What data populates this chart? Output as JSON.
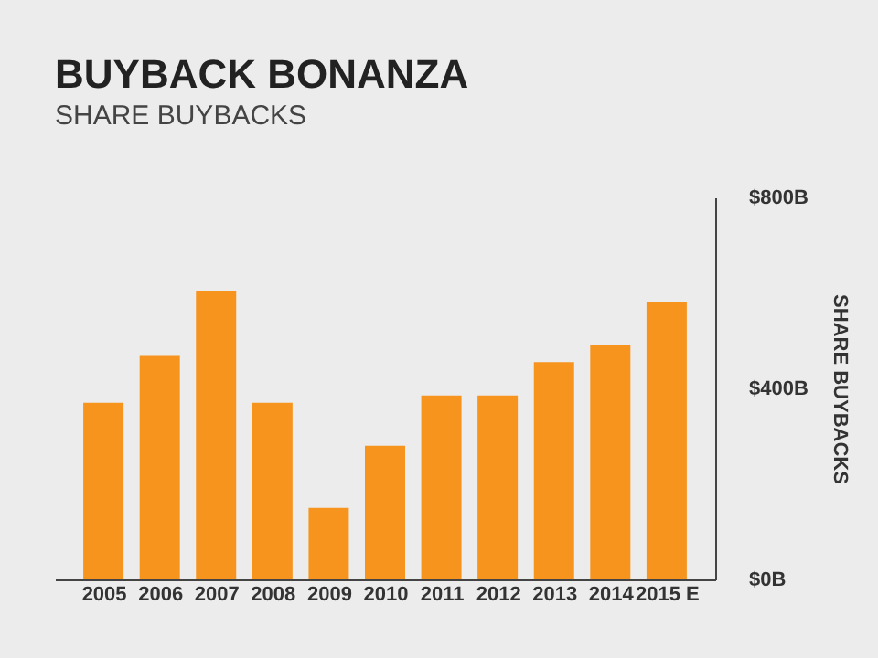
{
  "chart_data": {
    "type": "bar",
    "title": "BUYBACK BONANZA",
    "subtitle": "SHARE BUYBACKS",
    "ylabel": "SHARE BUYBACKS",
    "categories": [
      "2005",
      "2006",
      "2007",
      "2008",
      "2009",
      "2010",
      "2011",
      "2012",
      "2013",
      "2014",
      "2015 E"
    ],
    "values": [
      370,
      470,
      605,
      370,
      150,
      280,
      385,
      385,
      455,
      490,
      580
    ],
    "color": "#f7941d",
    "ylim": [
      0,
      800
    ],
    "yticks": [
      {
        "value": 0,
        "label": "$0B"
      },
      {
        "value": 400,
        "label": "$400B"
      },
      {
        "value": 800,
        "label": "$800B"
      }
    ],
    "grid": false
  }
}
